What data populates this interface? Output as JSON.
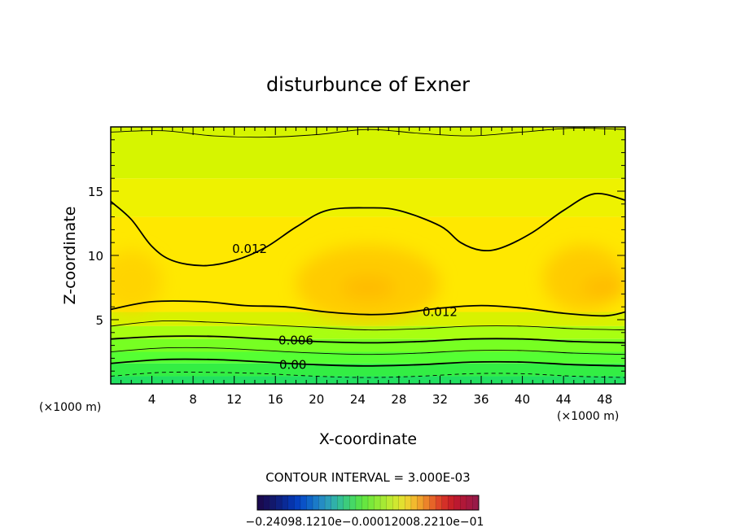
{
  "chart_data": {
    "type": "contour",
    "title": "disturbunce of Exner",
    "xlabel": "X-coordinate",
    "ylabel": "Z-coordinate",
    "x_unit_left": "(×1000 m)",
    "x_unit_right": "(×1000 m)",
    "xlim": [
      0,
      50
    ],
    "ylim": [
      0,
      20
    ],
    "x_ticks": [
      "4",
      "8",
      "12",
      "16",
      "20",
      "24",
      "28",
      "32",
      "36",
      "40",
      "44",
      "48"
    ],
    "y_ticks": [
      "5",
      "10",
      "15"
    ],
    "x_tick_values": [
      4,
      8,
      12,
      16,
      20,
      24,
      28,
      32,
      36,
      40,
      44,
      48
    ],
    "y_tick_values": [
      5,
      10,
      15
    ],
    "contour_interval_text": "CONTOUR INTERVAL = 3.000E-03",
    "contour_labels": [
      {
        "text": "0.012",
        "x": 13.5,
        "z": 10.5
      },
      {
        "text": "0.012",
        "x": 32.0,
        "z": 5.6
      },
      {
        "text": "0.006",
        "x": 18.0,
        "z": 3.4
      },
      {
        "text": "0.00",
        "x": 17.7,
        "z": 1.5
      }
    ],
    "contours": [
      {
        "level": 0.012,
        "style": "solid",
        "points": [
          [
            0,
            14.2
          ],
          [
            2,
            12.8
          ],
          [
            4,
            10.7
          ],
          [
            6,
            9.6
          ],
          [
            9,
            9.2
          ],
          [
            12,
            9.6
          ],
          [
            15,
            10.6
          ],
          [
            18,
            12.2
          ],
          [
            21,
            13.5
          ],
          [
            25,
            13.7
          ],
          [
            28,
            13.5
          ],
          [
            32,
            12.3
          ],
          [
            34,
            11.0
          ],
          [
            36,
            10.4
          ],
          [
            38,
            10.6
          ],
          [
            41,
            11.8
          ],
          [
            44,
            13.5
          ],
          [
            47,
            14.8
          ],
          [
            50,
            14.3
          ]
        ]
      },
      {
        "level": 0.012,
        "style": "solid",
        "points": [
          [
            0,
            5.8
          ],
          [
            4,
            6.4
          ],
          [
            9,
            6.4
          ],
          [
            13,
            6.1
          ],
          [
            17,
            6.0
          ],
          [
            21,
            5.6
          ],
          [
            25,
            5.4
          ],
          [
            28,
            5.5
          ],
          [
            32,
            5.9
          ],
          [
            36,
            6.1
          ],
          [
            40,
            5.9
          ],
          [
            44,
            5.5
          ],
          [
            48,
            5.3
          ],
          [
            50,
            5.6
          ]
        ]
      },
      {
        "level": 0.009,
        "style": "thin",
        "points": [
          [
            0,
            4.5
          ],
          [
            5,
            4.9
          ],
          [
            10,
            4.8
          ],
          [
            15,
            4.6
          ],
          [
            20,
            4.4
          ],
          [
            25,
            4.2
          ],
          [
            30,
            4.3
          ],
          [
            35,
            4.5
          ],
          [
            40,
            4.5
          ],
          [
            45,
            4.3
          ],
          [
            50,
            4.2
          ]
        ]
      },
      {
        "level": 0.006,
        "style": "solid",
        "points": [
          [
            0,
            3.5
          ],
          [
            5,
            3.7
          ],
          [
            10,
            3.7
          ],
          [
            15,
            3.5
          ],
          [
            20,
            3.3
          ],
          [
            25,
            3.2
          ],
          [
            30,
            3.3
          ],
          [
            35,
            3.5
          ],
          [
            40,
            3.5
          ],
          [
            45,
            3.3
          ],
          [
            50,
            3.2
          ]
        ]
      },
      {
        "level": 0.003,
        "style": "thin",
        "points": [
          [
            0,
            2.5
          ],
          [
            5,
            2.8
          ],
          [
            10,
            2.8
          ],
          [
            15,
            2.6
          ],
          [
            20,
            2.4
          ],
          [
            25,
            2.3
          ],
          [
            30,
            2.4
          ],
          [
            35,
            2.6
          ],
          [
            40,
            2.6
          ],
          [
            45,
            2.4
          ],
          [
            50,
            2.3
          ]
        ]
      },
      {
        "level": 0.0,
        "style": "solid",
        "points": [
          [
            0,
            1.6
          ],
          [
            5,
            1.9
          ],
          [
            10,
            1.9
          ],
          [
            15,
            1.7
          ],
          [
            20,
            1.5
          ],
          [
            25,
            1.4
          ],
          [
            30,
            1.5
          ],
          [
            35,
            1.7
          ],
          [
            40,
            1.7
          ],
          [
            45,
            1.5
          ],
          [
            50,
            1.4
          ]
        ]
      },
      {
        "level": -0.003,
        "style": "dashed",
        "points": [
          [
            0,
            0.6
          ],
          [
            5,
            0.9
          ],
          [
            10,
            0.9
          ],
          [
            15,
            0.8
          ],
          [
            20,
            0.6
          ],
          [
            25,
            0.5
          ],
          [
            30,
            0.6
          ],
          [
            35,
            0.8
          ],
          [
            40,
            0.8
          ],
          [
            45,
            0.6
          ],
          [
            50,
            0.5
          ]
        ]
      },
      {
        "level": 0.015,
        "style": "thin",
        "points": [
          [
            0,
            19.6
          ],
          [
            5,
            19.7
          ],
          [
            10,
            19.3
          ],
          [
            15,
            19.2
          ],
          [
            20,
            19.4
          ],
          [
            25,
            19.8
          ],
          [
            30,
            19.5
          ],
          [
            35,
            19.3
          ],
          [
            40,
            19.6
          ],
          [
            45,
            19.9
          ],
          [
            50,
            19.8
          ]
        ]
      }
    ],
    "fill_bands": [
      {
        "from": 0,
        "to": 0.6,
        "color": "#22e060"
      },
      {
        "from": 0.6,
        "to": 1.6,
        "color": "#33ee44"
      },
      {
        "from": 1.6,
        "to": 2.5,
        "color": "#55ff33"
      },
      {
        "from": 2.5,
        "to": 3.5,
        "color": "#77ff22"
      },
      {
        "from": 3.5,
        "to": 4.5,
        "color": "#a8ff11"
      },
      {
        "from": 4.5,
        "to": 5.6,
        "color": "#d8f200"
      },
      {
        "from": 5.6,
        "to": 13.0,
        "color": "#ffe800"
      },
      {
        "from": 13.0,
        "to": 16.0,
        "color": "#eef200"
      },
      {
        "from": 16.0,
        "to": 20.0,
        "color": "#d6f500"
      }
    ],
    "warm_blobs": [
      {
        "x": 25,
        "z": 7.8,
        "rx": 7,
        "rz": 3,
        "color": "#ffc400"
      },
      {
        "x": 46,
        "z": 8.2,
        "rx": 4,
        "rz": 2.6,
        "color": "#ffc400"
      },
      {
        "x": 2,
        "z": 8.0,
        "rx": 3,
        "rz": 2.4,
        "color": "#ffcf00"
      },
      {
        "x": 25,
        "z": 7.5,
        "rx": 2.6,
        "rz": 0.9,
        "color": "#ffb600"
      },
      {
        "x": 48,
        "z": 7.5,
        "rx": 2.2,
        "rz": 0.8,
        "color": "#ffb600"
      }
    ],
    "colorbar": {
      "labels_text": "−0.24098.1210e−0.00012008.2210e−01",
      "colors": [
        "#1a0a50",
        "#16105e",
        "#12186c",
        "#0e2080",
        "#0a2a96",
        "#0634ac",
        "#0540c0",
        "#0a52c8",
        "#1066c8",
        "#1a7ac8",
        "#258cc4",
        "#2c9eba",
        "#30b0aa",
        "#34c094",
        "#3ccc7c",
        "#46d866",
        "#54e04e",
        "#66e640",
        "#7ae83a",
        "#90ea36",
        "#a6ea34",
        "#bcea32",
        "#d0e830",
        "#e2e030",
        "#eed030",
        "#f2ba2e",
        "#f0a02c",
        "#ec842a",
        "#e66428",
        "#de4628",
        "#d43028",
        "#c82028",
        "#bc1830",
        "#b01838",
        "#a41840",
        "#981a48"
      ]
    }
  }
}
